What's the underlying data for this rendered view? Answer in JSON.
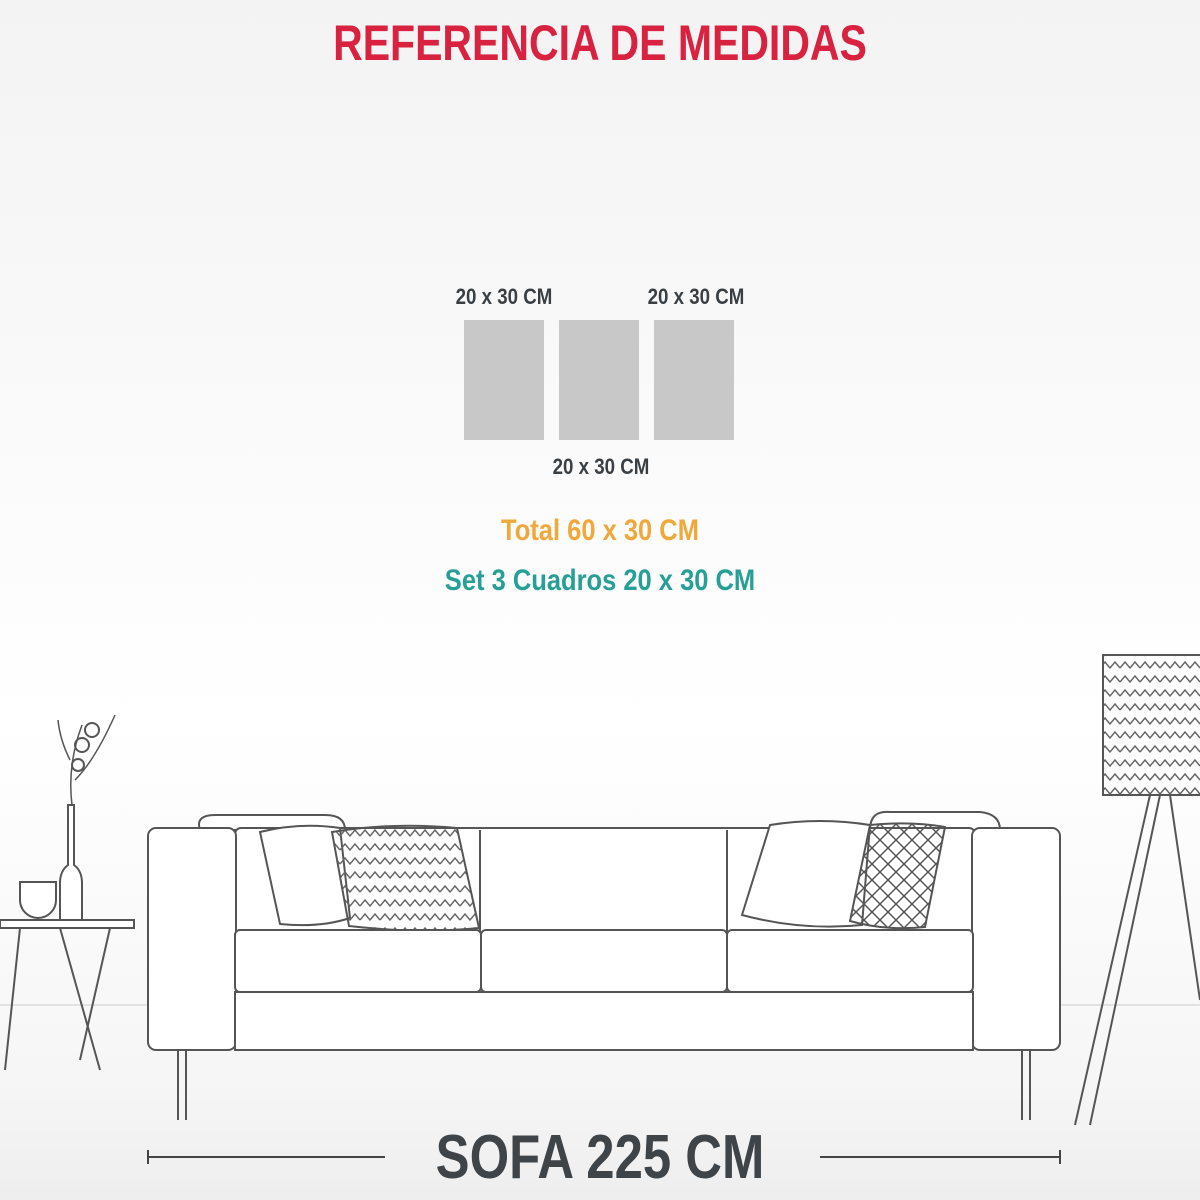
{
  "title": "REFERENCIA DE MEDIDAS",
  "panels": {
    "left_label": "20 x 30 CM",
    "middle_label": "20 x 30 CM",
    "right_label": "20 x 30 CM",
    "count": 3,
    "color": "#c8c8c8"
  },
  "total": "Total 60 x 30 CM",
  "set": "Set 3 Cuadros 20 x 30 CM",
  "sofa_label": "SOFA 225 CM",
  "colors": {
    "title": "#d9223f",
    "total": "#f0a83a",
    "set": "#26a096",
    "text": "#3a3f44"
  }
}
